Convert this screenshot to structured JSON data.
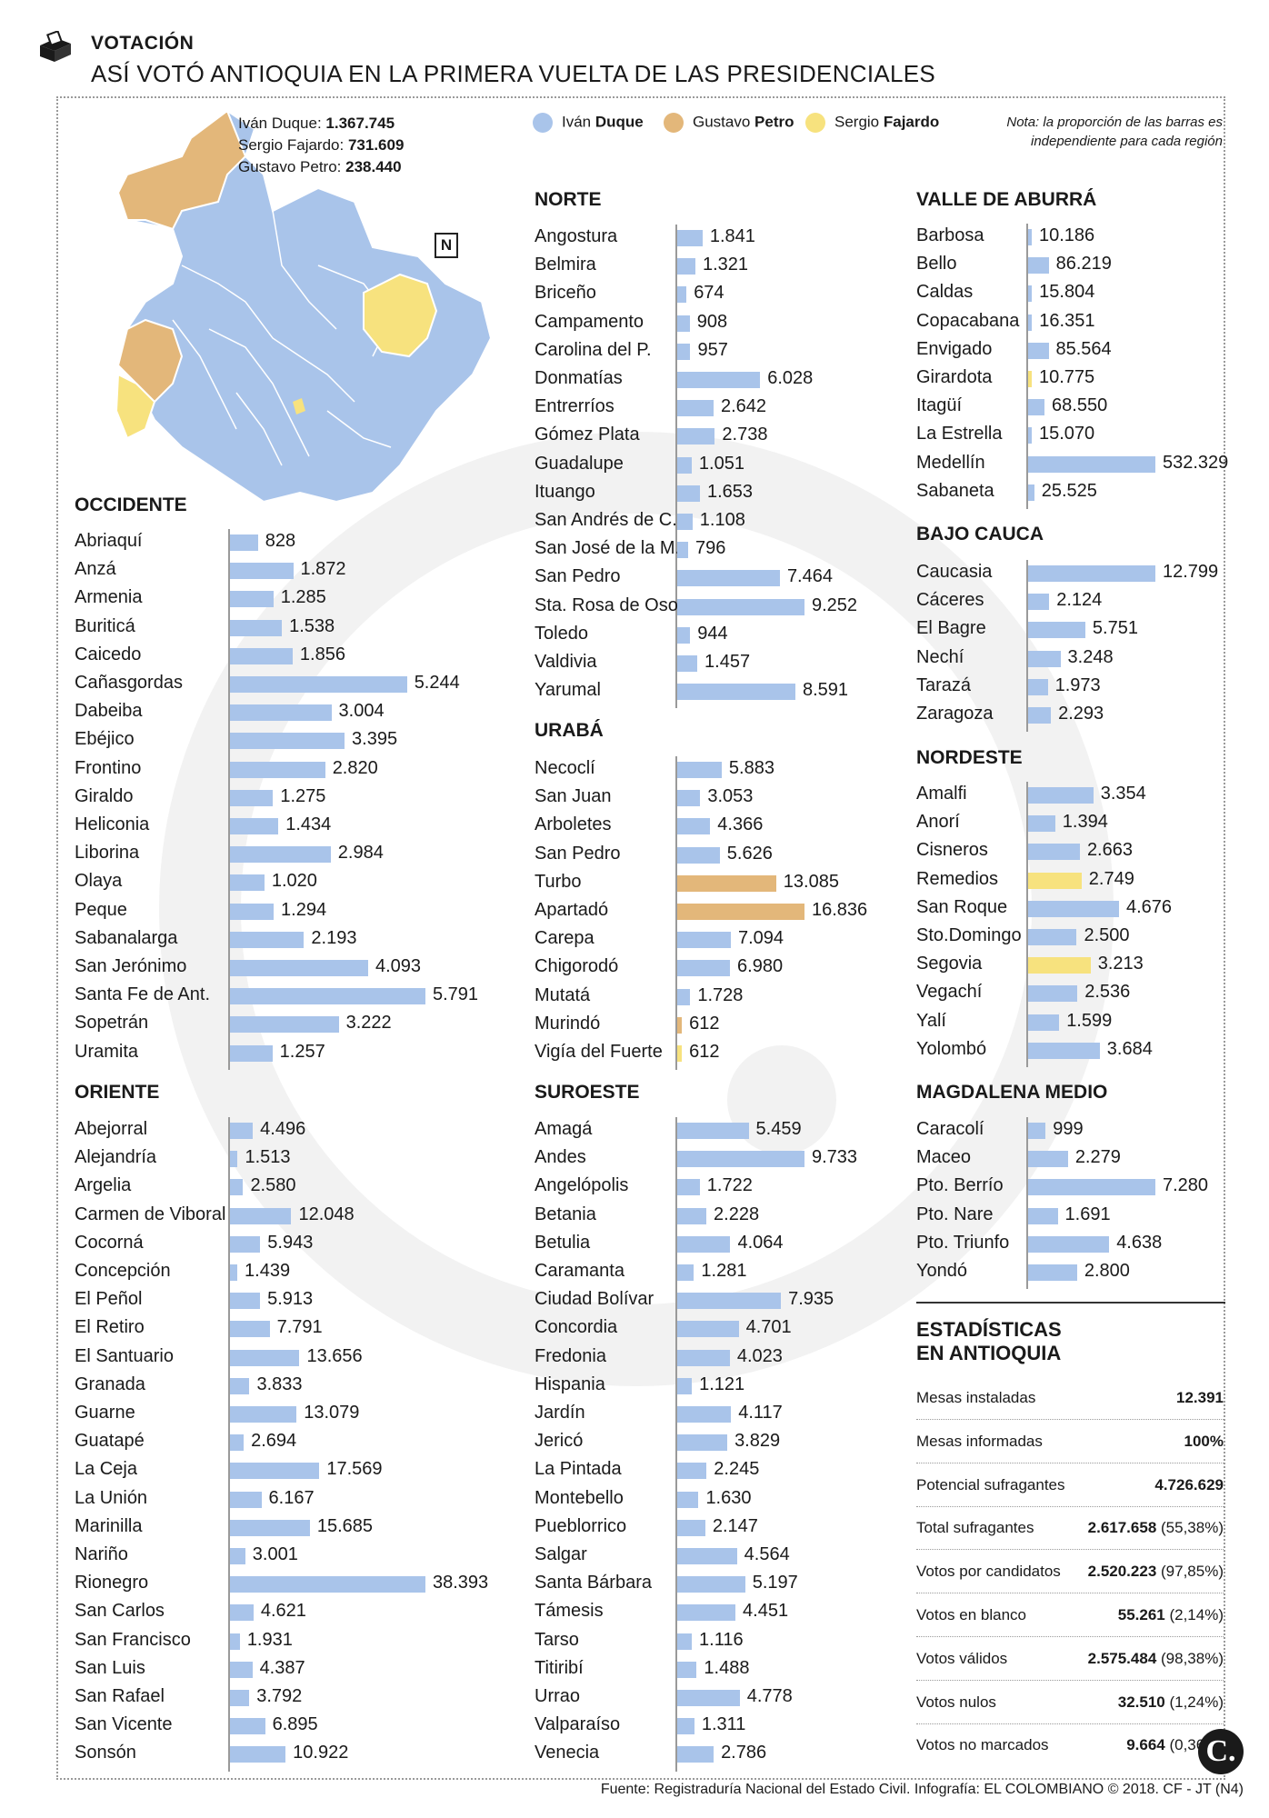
{
  "header": {
    "kicker": "VOTACIÓN",
    "title": "ASÍ VOTÓ ANTIOQUIA EN LA PRIMERA VUELTA DE LAS PRESIDENCIALES"
  },
  "totals": [
    {
      "label": "Iván Duque: ",
      "value": "1.367.745"
    },
    {
      "label": "Sergio Fajardo: ",
      "value": "731.609"
    },
    {
      "label": "Gustavo Petro: ",
      "value": "238.440"
    }
  ],
  "legend": [
    {
      "first": "Iván ",
      "last": "Duque",
      "color": "#a9c4ea"
    },
    {
      "first": "Gustavo ",
      "last": "Petro",
      "color": "#e3b77a"
    },
    {
      "first": "Sergio ",
      "last": "Fajardo",
      "color": "#f7e27e"
    }
  ],
  "note": "Nota: la proporción de las barras es independiente para cada región",
  "map": {
    "north_label": "N"
  },
  "colors": {
    "duque": "#a9c4ea",
    "petro": "#e3b77a",
    "fajardo": "#f7e27e",
    "axis": "#9a9a9a"
  },
  "chart_data": [
    {
      "type": "bar",
      "region": "OCCIDENTE",
      "categories": [
        "Abriaquí",
        "Anzá",
        "Armenia",
        "Buriticá",
        "Caicedo",
        "Cañasgordas",
        "Dabeiba",
        "Ebéjico",
        "Frontino",
        "Giraldo",
        "Heliconia",
        "Liborina",
        "Olaya",
        "Peque",
        "Sabanalarga",
        "San Jerónimo",
        "Santa Fe de Ant.",
        "Sopetrán",
        "Uramita"
      ],
      "values": [
        828,
        1872,
        1285,
        1538,
        1856,
        5244,
        3004,
        3395,
        2820,
        1275,
        1434,
        2984,
        1020,
        1294,
        2193,
        4093,
        5791,
        3222,
        1257
      ],
      "labels": [
        "828",
        "1.872",
        "1.285",
        "1.538",
        "1.856",
        "5.244",
        "3.004",
        "3.395",
        "2.820",
        "1.275",
        "1.434",
        "2.984",
        "1.020",
        "1.294",
        "2.193",
        "4.093",
        "5.791",
        "3.222",
        "1.257"
      ],
      "winner": [
        "duque",
        "duque",
        "duque",
        "duque",
        "duque",
        "duque",
        "duque",
        "duque",
        "duque",
        "duque",
        "duque",
        "duque",
        "duque",
        "duque",
        "duque",
        "duque",
        "duque",
        "duque",
        "duque"
      ]
    },
    {
      "type": "bar",
      "region": "ORIENTE",
      "categories": [
        "Abejorral",
        "Alejandría",
        "Argelia",
        "Carmen de Viboral",
        "Cocorná",
        "Concepción",
        "El Peñol",
        "El Retiro",
        "El Santuario",
        "Granada",
        "Guarne",
        "Guatapé",
        "La Ceja",
        "La Unión",
        "Marinilla",
        "Nariño",
        "Rionegro",
        "San Carlos",
        "San Francisco",
        "San Luis",
        "San Rafael",
        "San Vicente",
        "Sonsón"
      ],
      "values": [
        4496,
        1513,
        2580,
        12048,
        5943,
        1439,
        5913,
        7791,
        13656,
        3833,
        13079,
        2694,
        17569,
        6167,
        15685,
        3001,
        38393,
        4621,
        1931,
        4387,
        3792,
        6895,
        10922
      ],
      "labels": [
        "4.496",
        "1.513",
        "2.580",
        "12.048",
        "5.943",
        "1.439",
        "5.913",
        "7.791",
        "13.656",
        "3.833",
        "13.079",
        "2.694",
        "17.569",
        "6.167",
        "15.685",
        "3.001",
        "38.393",
        "4.621",
        "1.931",
        "4.387",
        "3.792",
        "6.895",
        "10.922"
      ],
      "winner": [
        "duque",
        "duque",
        "duque",
        "duque",
        "duque",
        "duque",
        "duque",
        "duque",
        "duque",
        "duque",
        "duque",
        "duque",
        "duque",
        "duque",
        "duque",
        "duque",
        "duque",
        "duque",
        "duque",
        "duque",
        "duque",
        "duque",
        "duque"
      ]
    },
    {
      "type": "bar",
      "region": "NORTE",
      "categories": [
        "Angostura",
        "Belmira",
        "Briceño",
        "Campamento",
        "Carolina del P.",
        "Donmatías",
        "Entrerríos",
        "Gómez Plata",
        "Guadalupe",
        "Ituango",
        "San Andrés de C.",
        "San José de la M.",
        "San Pedro",
        "Sta. Rosa de Osos",
        "Toledo",
        "Valdivia",
        "Yarumal"
      ],
      "values": [
        1841,
        1321,
        674,
        908,
        957,
        6028,
        2642,
        2738,
        1051,
        1653,
        1108,
        796,
        7464,
        9252,
        944,
        1457,
        8591
      ],
      "labels": [
        "1.841",
        "1.321",
        "674",
        "908",
        "957",
        "6.028",
        "2.642",
        "2.738",
        "1.051",
        "1.653",
        "1.108",
        "796",
        "7.464",
        "9.252",
        "944",
        "1.457",
        "8.591"
      ],
      "winner": [
        "duque",
        "duque",
        "duque",
        "duque",
        "duque",
        "duque",
        "duque",
        "duque",
        "duque",
        "duque",
        "duque",
        "duque",
        "duque",
        "duque",
        "duque",
        "duque",
        "duque"
      ]
    },
    {
      "type": "bar",
      "region": "URABÁ",
      "categories": [
        "Necoclí",
        "San Juan",
        "Arboletes",
        "San Pedro",
        "Turbo",
        "Apartadó",
        "Carepa",
        "Chigorodó",
        "Mutatá",
        "Murindó",
        "Vigía del Fuerte"
      ],
      "values": [
        5883,
        3053,
        4366,
        5626,
        13085,
        16836,
        7094,
        6980,
        1728,
        612,
        612
      ],
      "labels": [
        "5.883",
        "3.053",
        "4.366",
        "5.626",
        "13.085",
        "16.836",
        "7.094",
        "6.980",
        "1.728",
        "612",
        "612"
      ],
      "winner": [
        "duque",
        "duque",
        "duque",
        "duque",
        "petro",
        "petro",
        "duque",
        "duque",
        "duque",
        "petro",
        "fajardo"
      ]
    },
    {
      "type": "bar",
      "region": "SUROESTE",
      "categories": [
        "Amagá",
        "Andes",
        "Angelópolis",
        "Betania",
        "Betulia",
        "Caramanta",
        "Ciudad Bolívar",
        "Concordia",
        "Fredonia",
        "Hispania",
        "Jardín",
        "Jericó",
        "La Pintada",
        "Montebello",
        "Pueblorrico",
        "Salgar",
        "Santa Bárbara",
        "Támesis",
        "Tarso",
        "Titiribí",
        "Urrao",
        "Valparaíso",
        "Venecia"
      ],
      "values": [
        5459,
        9733,
        1722,
        2228,
        4064,
        1281,
        7935,
        4701,
        4023,
        1121,
        4117,
        3829,
        2245,
        1630,
        2147,
        4564,
        5197,
        4451,
        1116,
        1488,
        4778,
        1311,
        2786
      ],
      "labels": [
        "5.459",
        "9.733",
        "1.722",
        "2.228",
        "4.064",
        "1.281",
        "7.935",
        "4.701",
        "4.023",
        "1.121",
        "4.117",
        "3.829",
        "2.245",
        "1.630",
        "2.147",
        "4.564",
        "5.197",
        "4.451",
        "1.116",
        "1.488",
        "4.778",
        "1.311",
        "2.786"
      ],
      "winner": [
        "duque",
        "duque",
        "duque",
        "duque",
        "duque",
        "duque",
        "duque",
        "duque",
        "duque",
        "duque",
        "duque",
        "duque",
        "duque",
        "duque",
        "duque",
        "duque",
        "duque",
        "duque",
        "duque",
        "duque",
        "duque",
        "duque",
        "duque"
      ]
    },
    {
      "type": "bar",
      "region": "VALLE DE ABURRÁ",
      "categories": [
        "Barbosa",
        "Bello",
        "Caldas",
        "Copacabana",
        "Envigado",
        "Girardota",
        "Itagüí",
        "La Estrella",
        "Medellín",
        "Sabaneta"
      ],
      "values": [
        10186,
        86219,
        15804,
        16351,
        85564,
        10775,
        68550,
        15070,
        532329,
        25525
      ],
      "labels": [
        "10.186",
        "86.219",
        "15.804",
        "16.351",
        "85.564",
        "10.775",
        "68.550",
        "15.070",
        "532.329",
        "25.525"
      ],
      "winner": [
        "duque",
        "duque",
        "duque",
        "duque",
        "duque",
        "fajardo",
        "duque",
        "duque",
        "duque",
        "duque"
      ]
    },
    {
      "type": "bar",
      "region": "BAJO CAUCA",
      "categories": [
        "Caucasia",
        "Cáceres",
        "El Bagre",
        "Nechí",
        "Tarazá",
        "Zaragoza"
      ],
      "values": [
        12799,
        2124,
        5751,
        3248,
        1973,
        2293
      ],
      "labels": [
        "12.799",
        "2.124",
        "5.751",
        "3.248",
        "1.973",
        "2.293"
      ],
      "winner": [
        "duque",
        "duque",
        "duque",
        "duque",
        "duque",
        "duque"
      ]
    },
    {
      "type": "bar",
      "region": "NORDESTE",
      "categories": [
        "Amalfi",
        "Anorí",
        "Cisneros",
        "Remedios",
        "San Roque",
        "Sto.Domingo",
        "Segovia",
        "Vegachí",
        "Yalí",
        "Yolombó"
      ],
      "values": [
        3354,
        1394,
        2663,
        2749,
        4676,
        2500,
        3213,
        2536,
        1599,
        3684
      ],
      "labels": [
        "3.354",
        "1.394",
        "2.663",
        "2.749",
        "4.676",
        "2.500",
        "3.213",
        "2.536",
        "1.599",
        "3.684"
      ],
      "winner": [
        "duque",
        "duque",
        "duque",
        "fajardo",
        "duque",
        "duque",
        "fajardo",
        "duque",
        "duque",
        "duque"
      ]
    },
    {
      "type": "bar",
      "region": "MAGDALENA MEDIO",
      "categories": [
        "Caracolí",
        "Maceo",
        "Pto. Berrío",
        "Pto. Nare",
        "Pto. Triunfo",
        "Yondó"
      ],
      "values": [
        999,
        2279,
        7280,
        1691,
        4638,
        2800
      ],
      "labels": [
        "999",
        "2.279",
        "7.280",
        "1.691",
        "4.638",
        "2.800"
      ],
      "winner": [
        "duque",
        "duque",
        "duque",
        "duque",
        "duque",
        "duque"
      ]
    }
  ],
  "stats": {
    "title_1": "ESTADÍSTICAS",
    "title_2": "EN ANTIOQUIA",
    "rows": [
      {
        "label": "Mesas instaladas",
        "value": "12.391",
        "pct": ""
      },
      {
        "label": "Mesas informadas",
        "value": "100%",
        "pct": ""
      },
      {
        "label": "Potencial sufragantes",
        "value": "4.726.629",
        "pct": ""
      },
      {
        "label": "Total sufragantes",
        "value": "2.617.658",
        "pct": "(55,38%)"
      },
      {
        "label": "Votos por candidatos",
        "value": "2.520.223",
        "pct": "(97,85%)"
      },
      {
        "label": "Votos en blanco",
        "value": "55.261",
        "pct": "(2,14%)"
      },
      {
        "label": "Votos válidos",
        "value": "2.575.484",
        "pct": "(98,38%)"
      },
      {
        "label": "Votos nulos",
        "value": "32.510",
        "pct": "(1,24%)"
      },
      {
        "label": "Votos no marcados",
        "value": "9.664",
        "pct": "(0,36%)"
      }
    ]
  },
  "source": "Fuente: Registraduría Nacional del Estado Civil. Infografía: EL COLOMBIANO © 2018. CF - JT (N4)",
  "logo": "C."
}
